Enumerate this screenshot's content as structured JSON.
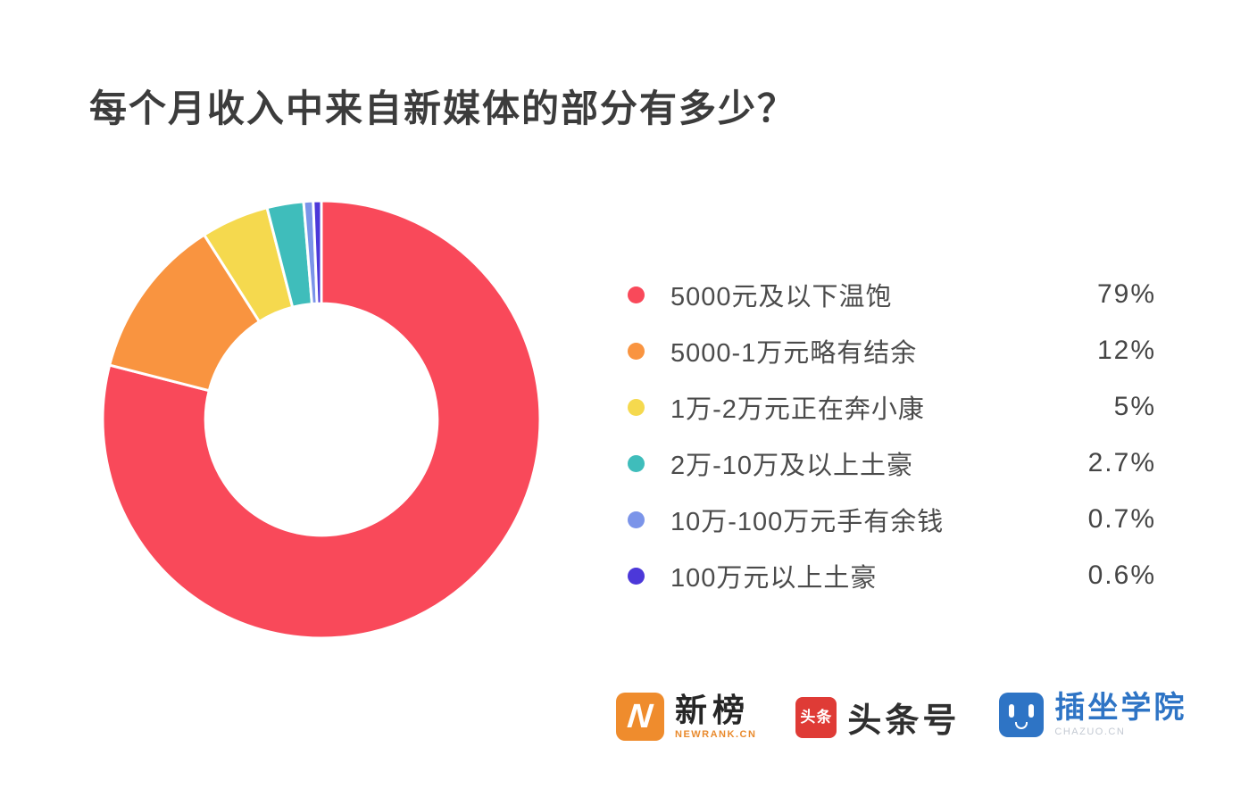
{
  "chart_data": {
    "type": "pie",
    "subtype": "donut",
    "title": "每个月收入中来自新媒体的部分有多少？",
    "total": 100,
    "start_angle": "top",
    "direction": "clockwise",
    "legend_position": "right",
    "inner_radius_ratio": 0.53,
    "slice_gap_color": "#ffffff",
    "series": [
      {
        "label": "5000元及以下温饱",
        "value": 79,
        "display": "79%",
        "color": "#F9495A"
      },
      {
        "label": "5000-1万元略有结余",
        "value": 12,
        "display": "12%",
        "color": "#F99440"
      },
      {
        "label": "1万-2万元正在奔小康",
        "value": 5,
        "display": "5%",
        "color": "#F5D94E"
      },
      {
        "label": "2万-10万及以上土豪",
        "value": 2.7,
        "display": "2.7%",
        "color": "#3FBDBB"
      },
      {
        "label": "10万-100万元手有余钱",
        "value": 0.7,
        "display": "0.7%",
        "color": "#7B94E9"
      },
      {
        "label": "100万元以上土豪",
        "value": 0.6,
        "display": "0.6%",
        "color": "#4C38D9"
      }
    ]
  },
  "footer": {
    "logos": [
      {
        "name": "newrank",
        "icon_glyph": "N",
        "text": "新榜",
        "subtext": "NEWRANK.CN",
        "icon_color": "#EF8C2D",
        "text_color": "#262626",
        "subtext_color": "#E98A2D"
      },
      {
        "name": "toutiao-hao",
        "icon_text": "头条",
        "text": "头条号",
        "icon_color": "#DF3B36",
        "text_color": "#2f2f2f"
      },
      {
        "name": "chazuo-college",
        "text": "插坐学院",
        "subtext": "CHAZUO.CN",
        "icon_color": "#2E74C5",
        "text_color": "#2E74C5",
        "subtext_color": "#C3C9D2"
      }
    ]
  }
}
